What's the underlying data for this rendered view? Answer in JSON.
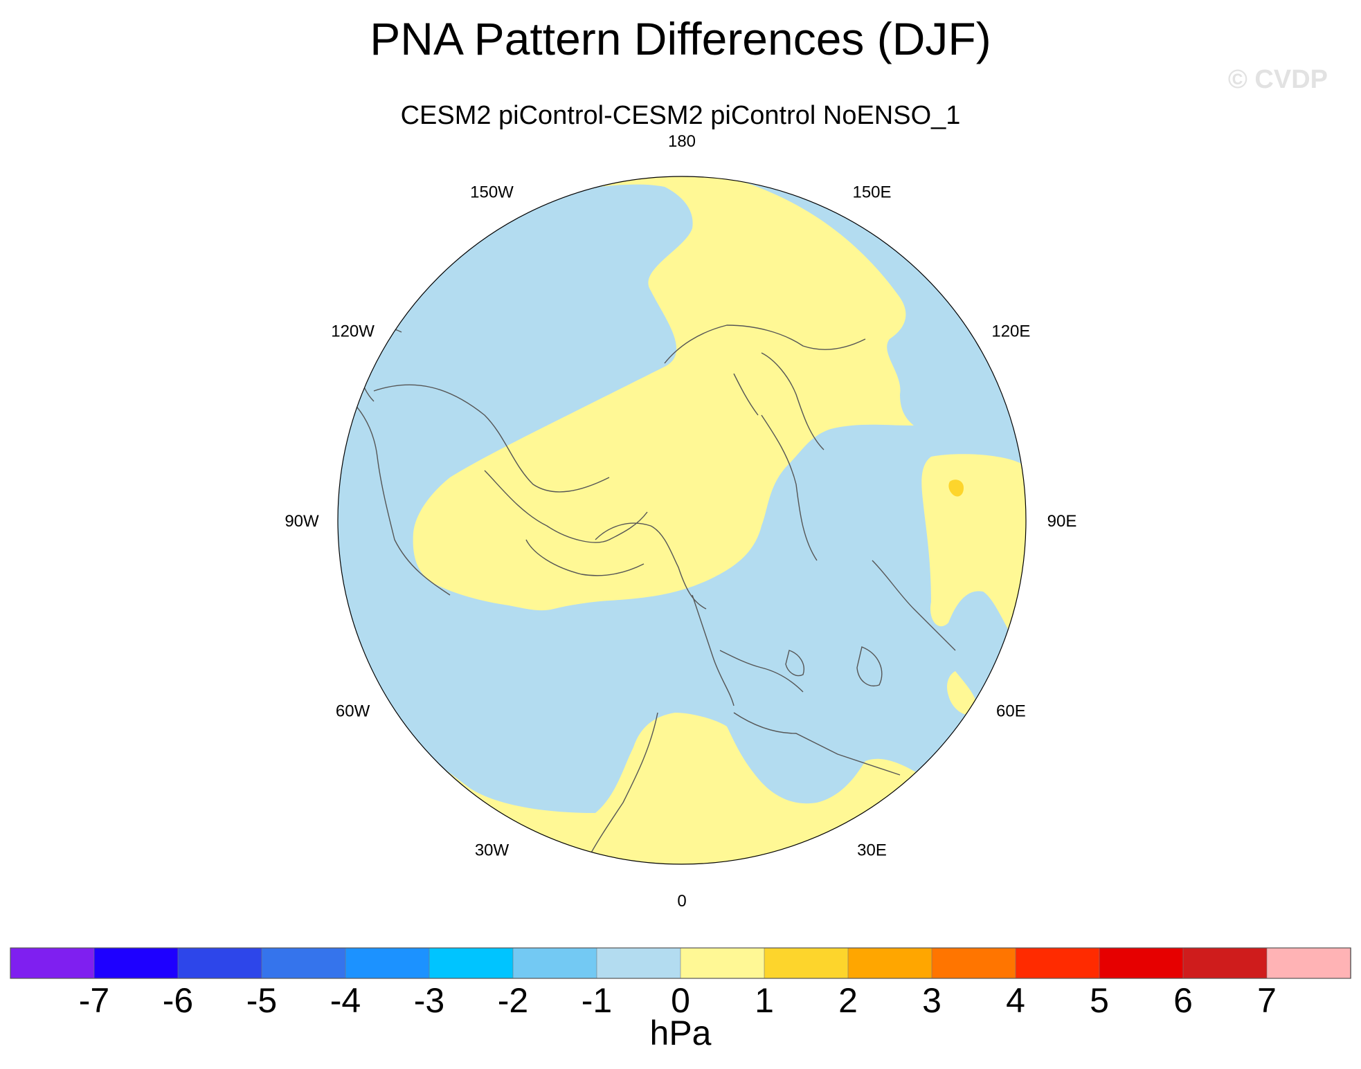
{
  "title": "PNA Pattern Differences (DJF)",
  "subtitle": "CESM2 piControl-CESM2 piControl NoENSO_1",
  "watermark": "© CVDP",
  "map": {
    "projection": "polar stereographic (Northern Hemisphere)",
    "longitude_labels": [
      {
        "text": "180",
        "lon": 180
      },
      {
        "text": "150E",
        "lon": 150
      },
      {
        "text": "120E",
        "lon": 120
      },
      {
        "text": "90E",
        "lon": 90
      },
      {
        "text": "60E",
        "lon": 60
      },
      {
        "text": "30E",
        "lon": 30
      },
      {
        "text": "0",
        "lon": 0
      },
      {
        "text": "30W",
        "lon": -30
      },
      {
        "text": "60W",
        "lon": -60
      },
      {
        "text": "90W",
        "lon": -90
      },
      {
        "text": "120W",
        "lon": -120
      },
      {
        "text": "150W",
        "lon": -150
      }
    ],
    "field_colors": {
      "negative": "#b3dcf0",
      "positive": "#fff895",
      "strong_positive": "#fdd52c"
    }
  },
  "colorbar": {
    "units": "hPa",
    "ticks": [
      "-7",
      "-6",
      "-5",
      "-4",
      "-3",
      "-2",
      "-1",
      "0",
      "1",
      "2",
      "3",
      "4",
      "5",
      "6",
      "7"
    ],
    "colors": [
      "#7f1ff0",
      "#1e00ff",
      "#2d46ea",
      "#3574ec",
      "#1c92ff",
      "#00c4ff",
      "#73c9f3",
      "#b3dcf0",
      "#fff895",
      "#fdd52c",
      "#ffa600",
      "#ff7500",
      "#ff2b00",
      "#e60000",
      "#cf1c1c",
      "#ffb3b5"
    ]
  }
}
